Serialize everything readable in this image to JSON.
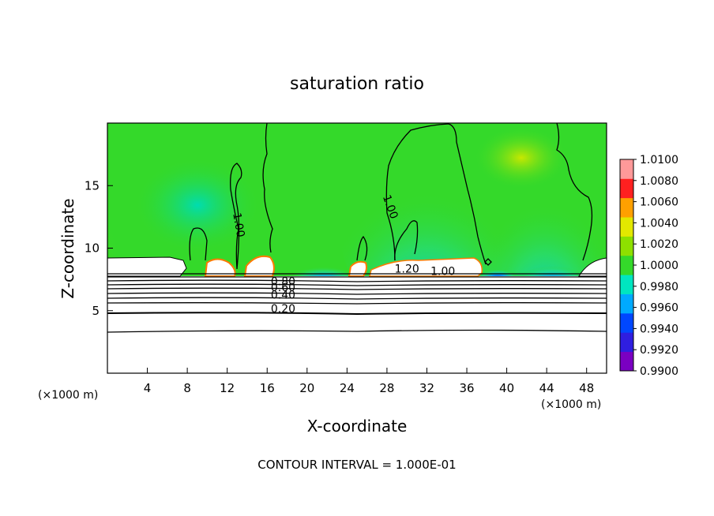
{
  "chart_data": {
    "type": "heatmap",
    "title": "saturation ratio",
    "xlabel": "X-coordinate",
    "ylabel": "Z-coordinate",
    "x_unit": "(×1000 m)",
    "x_unit_right": "(×1000 m)",
    "xlim": [
      0,
      50
    ],
    "ylim": [
      0,
      20
    ],
    "x_ticks": [
      "4",
      "8",
      "12",
      "16",
      "20",
      "24",
      "28",
      "32",
      "36",
      "40",
      "44",
      "48"
    ],
    "y_ticks": [
      "5",
      "10",
      "15"
    ],
    "colorbar_ticks": [
      "0.9900",
      "0.9920",
      "0.9940",
      "0.9960",
      "0.9980",
      "1.0000",
      "1.0020",
      "1.0040",
      "1.0060",
      "1.0080",
      "1.0100"
    ],
    "colorbar_colors": [
      "#7a00c2",
      "#2f1ee0",
      "#0047ff",
      "#00aaff",
      "#00e6c0",
      "#34d92a",
      "#8ee000",
      "#e3e800",
      "#ffa000",
      "#ff2020",
      "#ff9999"
    ],
    "contour_labels": [
      {
        "text": "1.00",
        "x": 12.8,
        "y": 11.8,
        "rotate": 80
      },
      {
        "text": "1.00",
        "x": 28.0,
        "y": 13.2,
        "rotate": 70
      },
      {
        "text": "1.20",
        "x": 30.0,
        "y": 8.05,
        "rotate": 0
      },
      {
        "text": "1.00",
        "x": 33.6,
        "y": 7.85,
        "rotate": 0
      },
      {
        "text": "0.80",
        "x": 17.6,
        "y": 7.05,
        "rotate": 0
      },
      {
        "text": "0.60",
        "x": 17.6,
        "y": 6.55,
        "rotate": 0
      },
      {
        "text": "0.40",
        "x": 17.6,
        "y": 5.95,
        "rotate": 0
      },
      {
        "text": "0.20",
        "x": 17.6,
        "y": 4.85,
        "rotate": 0
      }
    ],
    "annotation": "CONTOUR INTERVAL = 1.000E-01",
    "grid": false,
    "legend": "colorbar-right"
  }
}
